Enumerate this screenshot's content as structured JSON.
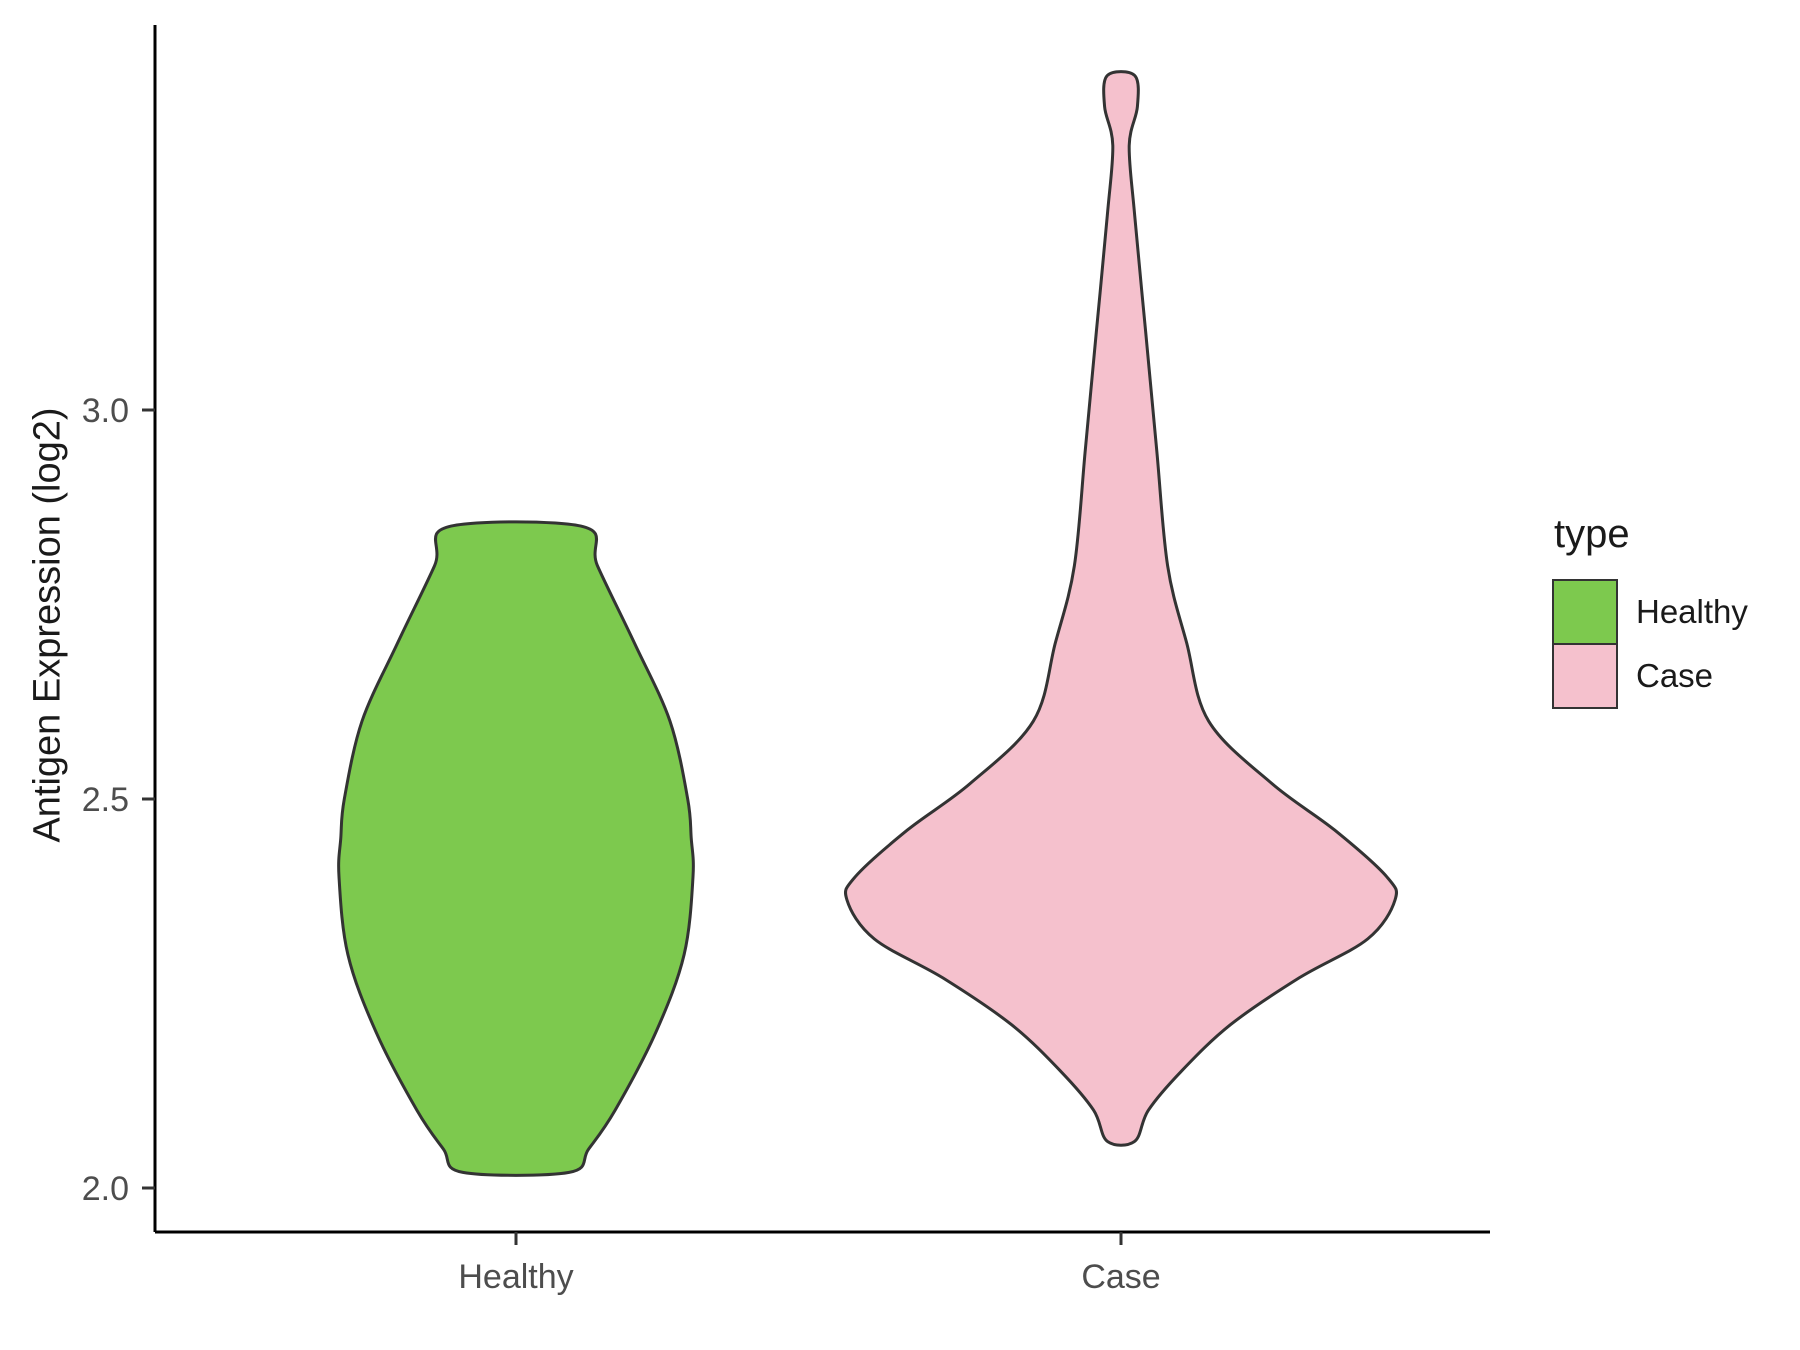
{
  "chart_data": {
    "type": "violin",
    "title": "",
    "xlabel": "",
    "ylabel": "Antigen Expression (log2)",
    "ylim": [
      1.95,
      3.5
    ],
    "grid": false,
    "yticks": [
      {
        "label": "2.0",
        "value": 2.0
      },
      {
        "label": "2.5",
        "value": 2.5
      },
      {
        "label": "3.0",
        "value": 3.0
      }
    ],
    "categories": [
      "Healthy",
      "Case"
    ],
    "legend": {
      "title": "type",
      "position": "right",
      "entries": [
        {
          "label": "Healthy",
          "color": "#7DC94E"
        },
        {
          "label": "Case",
          "color": "#F5C1CD"
        }
      ]
    },
    "stroke_color": "#333333",
    "axis_color": "#000000",
    "tick_text_color": "#4D4D4D",
    "series": [
      {
        "name": "Healthy",
        "color": "#7DC94E",
        "value_range": [
          2.02,
          2.85
        ],
        "peak_value": 2.4,
        "density": [
          {
            "v": 2.85,
            "w": 0.38
          },
          {
            "v": 2.8,
            "w": 0.46
          },
          {
            "v": 2.7,
            "w": 0.67
          },
          {
            "v": 2.6,
            "w": 0.87
          },
          {
            "v": 2.5,
            "w": 0.97
          },
          {
            "v": 2.45,
            "w": 0.99
          },
          {
            "v": 2.4,
            "w": 1.0
          },
          {
            "v": 2.3,
            "w": 0.95
          },
          {
            "v": 2.2,
            "w": 0.79
          },
          {
            "v": 2.1,
            "w": 0.56
          },
          {
            "v": 2.05,
            "w": 0.41
          },
          {
            "v": 2.02,
            "w": 0.3
          }
        ]
      },
      {
        "name": "Case",
        "color": "#F5C1CD",
        "value_range": [
          2.06,
          3.43
        ],
        "peak_value": 2.37,
        "density": [
          {
            "v": 3.43,
            "w": 0.05
          },
          {
            "v": 3.39,
            "w": 0.06
          },
          {
            "v": 3.34,
            "w": 0.03
          },
          {
            "v": 3.25,
            "w": 0.05
          },
          {
            "v": 3.1,
            "w": 0.09
          },
          {
            "v": 2.95,
            "w": 0.13
          },
          {
            "v": 2.8,
            "w": 0.17
          },
          {
            "v": 2.7,
            "w": 0.24
          },
          {
            "v": 2.6,
            "w": 0.32
          },
          {
            "v": 2.52,
            "w": 0.55
          },
          {
            "v": 2.46,
            "w": 0.78
          },
          {
            "v": 2.4,
            "w": 0.97
          },
          {
            "v": 2.37,
            "w": 1.0
          },
          {
            "v": 2.32,
            "w": 0.9
          },
          {
            "v": 2.27,
            "w": 0.65
          },
          {
            "v": 2.21,
            "w": 0.4
          },
          {
            "v": 2.15,
            "w": 0.22
          },
          {
            "v": 2.1,
            "w": 0.1
          },
          {
            "v": 2.06,
            "w": 0.05
          }
        ]
      }
    ]
  }
}
